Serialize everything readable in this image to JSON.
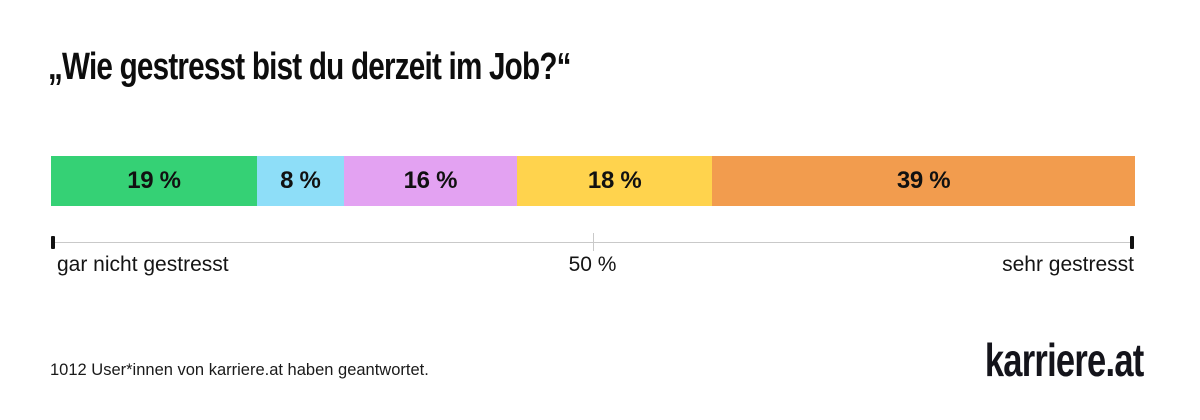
{
  "colors": {
    "background": "#ffffff",
    "text": "#111111",
    "axis_line": "#c9c9c9",
    "tick_end": "#111111"
  },
  "chart_data": {
    "type": "bar",
    "orientation": "horizontal-stacked",
    "title": "„Wie gestresst bist du derzeit im Job?“",
    "segments": [
      {
        "label": "19 %",
        "value": 19,
        "color": "#35d175",
        "meaning": "gar nicht gestresst (end of scale)"
      },
      {
        "label": "8 %",
        "value": 8,
        "color": "#8edef8"
      },
      {
        "label": "16 %",
        "value": 16,
        "color": "#e3a2f2"
      },
      {
        "label": "18 %",
        "value": 18,
        "color": "#ffd34d"
      },
      {
        "label": "39 %",
        "value": 39,
        "color": "#f29c4e",
        "meaning": "sehr gestresst (end of scale)"
      }
    ],
    "axis": {
      "range": [
        0,
        100
      ],
      "min_label": "gar nicht gestresst",
      "mid_label": "50 %",
      "max_label": "sehr gestresst"
    },
    "footnote": "1012 User*innen von karriere.at haben geantwortet.",
    "brand": "karriere.at",
    "legend": "none",
    "grid": false
  }
}
